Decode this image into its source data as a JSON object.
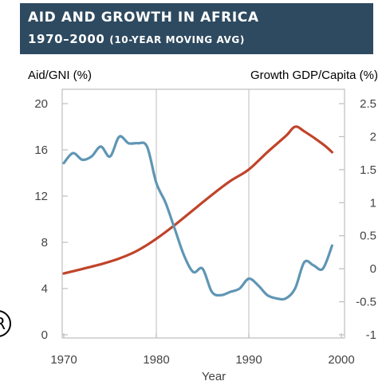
{
  "header": {
    "title_line1": "AID AND GROWTH IN AFRICA",
    "title_line2_main": "1970–2000",
    "title_line2_sub": "(10-YEAR MOVING AVG)"
  },
  "colors": {
    "title_bg": "#2e4a60",
    "aid": "#c0442a",
    "growth": "#5f96b4",
    "axis_text": "#444444",
    "gridline": "#c8c8c8",
    "plot_border": "#bdbdbd"
  },
  "margin_mark": "R",
  "chart_data": {
    "type": "line",
    "xlabel": "Year",
    "ylabel_left": "Aid/GNI (%)",
    "ylabel_right": "Growth GDP/Capita (%)",
    "xlim": [
      1970,
      2000
    ],
    "ylim_left": [
      0,
      20
    ],
    "ylim_right": [
      -1,
      2.5
    ],
    "x_ticks": [
      1970,
      1980,
      1990,
      2000
    ],
    "y_ticks_left": [
      0,
      4,
      8,
      12,
      16,
      20
    ],
    "y_ticks_right": [
      -1,
      -0.5,
      0,
      0.5,
      1,
      1.5,
      2,
      2.5
    ],
    "y_tick_labels_right": [
      "-1",
      "-0.5",
      "0",
      "0.5",
      "1",
      "1.5",
      "2",
      "2.5"
    ],
    "vertical_gridlines": [
      1980,
      1990
    ],
    "series": [
      {
        "name": "Aid/GNI (%)",
        "axis": "left",
        "color": "#c0442a",
        "x": [
          1970,
          1972,
          1974,
          1976,
          1978,
          1980,
          1982,
          1984,
          1986,
          1988,
          1990,
          1992,
          1994,
          1995,
          1996,
          1998,
          1999
        ],
        "y": [
          5.3,
          5.7,
          6.1,
          6.6,
          7.3,
          8.3,
          9.5,
          10.8,
          12.1,
          13.3,
          14.3,
          15.8,
          17.2,
          18.0,
          17.6,
          16.5,
          15.8
        ]
      },
      {
        "name": "Growth GDP/Capita (%)",
        "axis": "right",
        "color": "#5f96b4",
        "x": [
          1970,
          1971,
          1972,
          1973,
          1974,
          1975,
          1976,
          1977,
          1978,
          1979,
          1980,
          1981,
          1982,
          1983,
          1984,
          1985,
          1986,
          1987,
          1988,
          1989,
          1990,
          1991,
          1992,
          1993,
          1994,
          1995,
          1996,
          1997,
          1998,
          1999
        ],
        "y": [
          1.6,
          1.75,
          1.65,
          1.7,
          1.85,
          1.7,
          2.0,
          1.9,
          1.9,
          1.85,
          1.3,
          1.0,
          0.6,
          0.2,
          -0.05,
          0.0,
          -0.35,
          -0.4,
          -0.35,
          -0.3,
          -0.15,
          -0.25,
          -0.4,
          -0.45,
          -0.45,
          -0.3,
          0.1,
          0.05,
          0.0,
          0.35
        ]
      }
    ]
  }
}
